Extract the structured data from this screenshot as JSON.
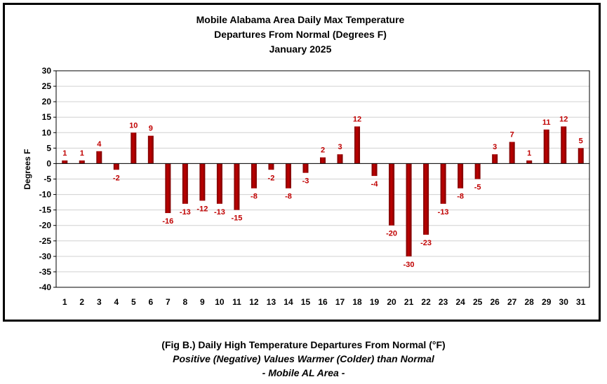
{
  "chart_data": {
    "type": "bar",
    "title": [
      "Mobile Alabama Area Daily Max Temperature",
      "Departures From Normal (Degrees F)",
      "January 2025"
    ],
    "ylabel": "Degrees F",
    "xlabel": "",
    "ylim": [
      -40,
      30
    ],
    "ytick_step": 5,
    "grid": true,
    "legend": "none",
    "bar_color": "#c00000",
    "bar_dark": "#7a0000",
    "label_color": "#c00000",
    "categories": [
      "1",
      "2",
      "3",
      "4",
      "5",
      "6",
      "7",
      "8",
      "9",
      "10",
      "11",
      "12",
      "13",
      "14",
      "15",
      "16",
      "17",
      "18",
      "19",
      "20",
      "21",
      "22",
      "23",
      "24",
      "25",
      "26",
      "27",
      "28",
      "29",
      "30",
      "31"
    ],
    "values": [
      1,
      1,
      4,
      -2,
      10,
      9,
      -16,
      -13,
      -12,
      -13,
      -15,
      -8,
      -2,
      -8,
      -3,
      2,
      3,
      12,
      -4,
      -20,
      -30,
      -23,
      -13,
      -8,
      -5,
      3,
      7,
      1,
      11,
      12,
      5
    ]
  },
  "caption": {
    "line1": "(Fig B.) Daily High Temperature Departures From Normal (°F)",
    "line2": "Positive (Negative) Values Warmer (Colder) than Normal",
    "line3": "- Mobile AL Area -"
  }
}
